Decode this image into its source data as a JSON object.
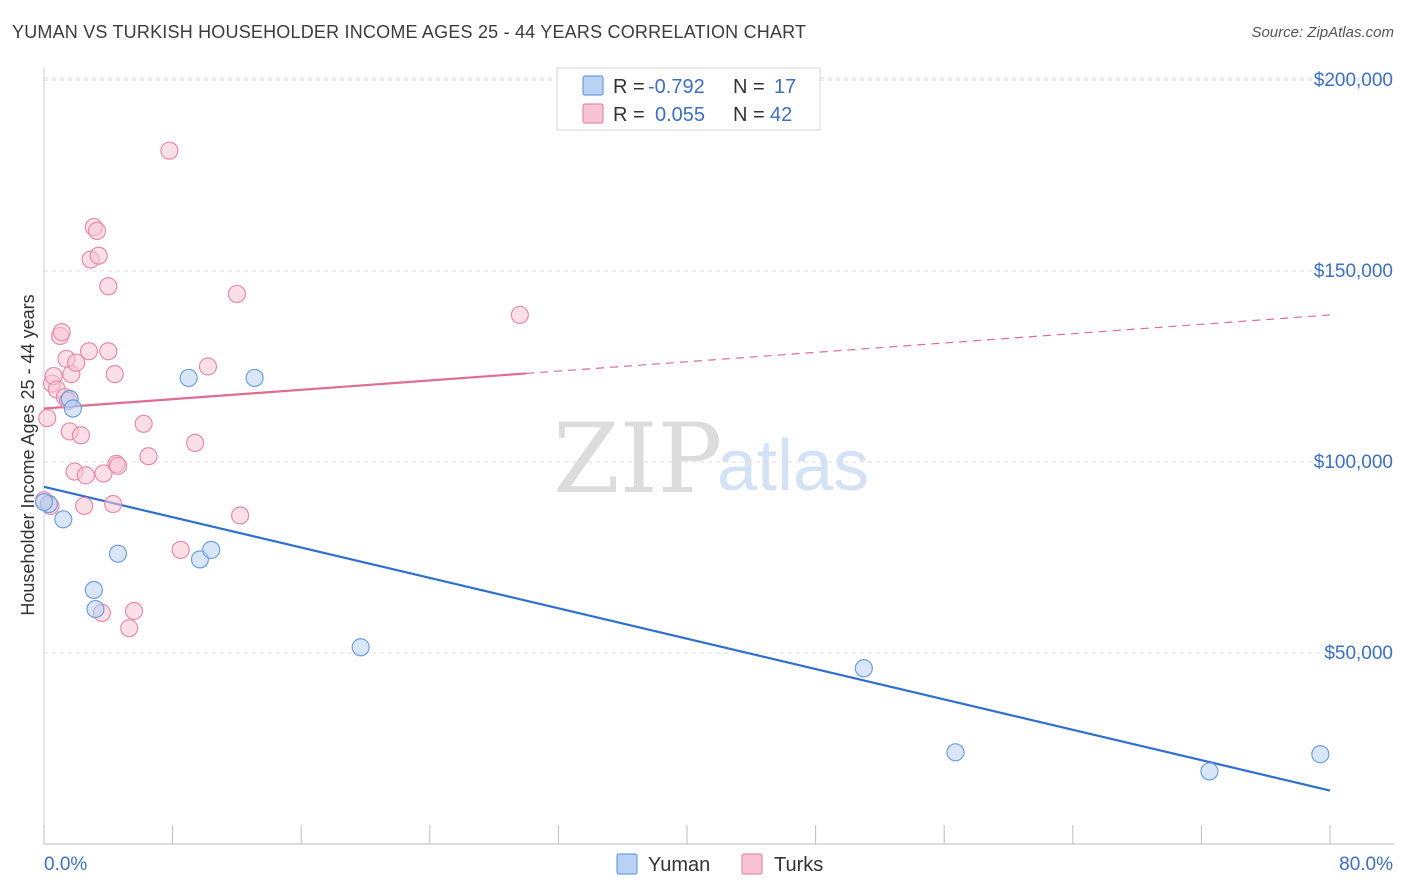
{
  "header": {
    "title": "YUMAN VS TURKISH HOUSEHOLDER INCOME AGES 25 - 44 YEARS CORRELATION CHART",
    "source": "Source: ZipAtlas.com"
  },
  "colors": {
    "yuman_fill": "#b9d1f3",
    "yuman_stroke": "#6f9ee0",
    "yuman_line": "#2f6fd0",
    "turks_fill": "#f7c4d4",
    "turks_stroke": "#e98aab",
    "turks_line": "#e06c94",
    "tick_text": "#3d6fc4"
  },
  "stats_legend": {
    "rows": [
      {
        "r_label": "R = ",
        "r_value": "-0.792",
        "n_label": "N = ",
        "n_value": "17"
      },
      {
        "r_label": "R = ",
        "r_value": "0.055",
        "n_label": "N = ",
        "n_value": "42"
      }
    ]
  },
  "watermark": {
    "zip": "ZIP",
    "atlas": "atlas"
  },
  "chart_data": {
    "type": "scatter",
    "ylabel": "Householder Income Ages 25 - 44 years",
    "xlim": [
      0,
      80
    ],
    "ylim": [
      0,
      210000
    ],
    "x_tick_labels": [
      "0.0%",
      "80.0%"
    ],
    "y_ticks": [
      {
        "value": 50000,
        "label": "$50,000"
      },
      {
        "value": 100000,
        "label": "$100,000"
      },
      {
        "value": 150000,
        "label": "$150,000"
      },
      {
        "value": 200000,
        "label": "$200,000"
      }
    ],
    "legend": [
      "Yuman",
      "Turks"
    ],
    "series": [
      {
        "name": "Yuman",
        "points": [
          [
            0.3,
            89000
          ],
          [
            1.2,
            85000
          ],
          [
            1.6,
            116500
          ],
          [
            1.8,
            114000
          ],
          [
            3.1,
            66500
          ],
          [
            3.2,
            61500
          ],
          [
            4.6,
            76000
          ],
          [
            9.0,
            122000
          ],
          [
            9.7,
            74500
          ],
          [
            10.4,
            77000
          ],
          [
            13.1,
            122000
          ],
          [
            19.7,
            51500
          ],
          [
            51.0,
            46000
          ],
          [
            56.7,
            24000
          ],
          [
            72.5,
            19000
          ],
          [
            79.4,
            23500
          ],
          [
            0.0,
            89500
          ]
        ],
        "trend": {
          "x": [
            0,
            80
          ],
          "y": [
            93500,
            14000
          ],
          "dashed_from": null
        }
      },
      {
        "name": "Turks",
        "points": [
          [
            0.0,
            90000
          ],
          [
            0.2,
            111500
          ],
          [
            0.5,
            120500
          ],
          [
            0.6,
            122500
          ],
          [
            0.8,
            119000
          ],
          [
            1.0,
            133000
          ],
          [
            1.1,
            134000
          ],
          [
            1.3,
            117000
          ],
          [
            1.4,
            127000
          ],
          [
            1.6,
            108000
          ],
          [
            1.7,
            123000
          ],
          [
            1.9,
            97500
          ],
          [
            2.0,
            126000
          ],
          [
            2.3,
            107000
          ],
          [
            2.5,
            88500
          ],
          [
            2.6,
            96500
          ],
          [
            2.8,
            129000
          ],
          [
            2.9,
            153000
          ],
          [
            3.1,
            161500
          ],
          [
            3.3,
            160500
          ],
          [
            3.4,
            154000
          ],
          [
            3.6,
            60500
          ],
          [
            3.7,
            97000
          ],
          [
            4.0,
            129000
          ],
          [
            4.0,
            146000
          ],
          [
            4.3,
            89000
          ],
          [
            4.4,
            123000
          ],
          [
            4.5,
            99500
          ],
          [
            4.6,
            99000
          ],
          [
            5.3,
            56500
          ],
          [
            5.6,
            61000
          ],
          [
            6.2,
            110000
          ],
          [
            6.5,
            101500
          ],
          [
            7.8,
            181500
          ],
          [
            8.5,
            77000
          ],
          [
            9.4,
            105000
          ],
          [
            10.2,
            125000
          ],
          [
            12.0,
            144000
          ],
          [
            12.2,
            86000
          ],
          [
            29.6,
            138500
          ],
          [
            1.5,
            116000
          ],
          [
            0.4,
            88500
          ]
        ],
        "trend": {
          "x": [
            0,
            80
          ],
          "y": [
            114000,
            138500
          ],
          "dashed_from": 30
        }
      }
    ]
  }
}
